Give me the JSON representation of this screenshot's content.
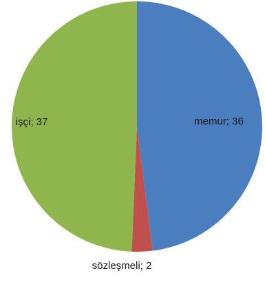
{
  "chart_data": {
    "type": "pie",
    "title": "",
    "slices": [
      {
        "label": "memur",
        "value": 36,
        "color": "#4a7ebf",
        "data_label": "memur; 36"
      },
      {
        "label": "sözleşmeli",
        "value": 2,
        "color": "#c0504d",
        "data_label": "sözleşmeli; 2"
      },
      {
        "label": "işçi",
        "value": 37,
        "color": "#8fb54d",
        "data_label": "işçi; 37"
      }
    ],
    "legend": "none"
  }
}
